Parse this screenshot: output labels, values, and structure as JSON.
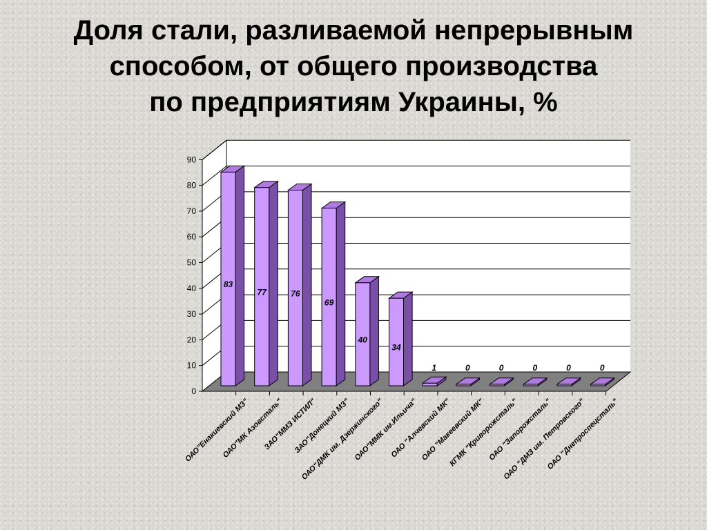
{
  "chart_data": {
    "type": "bar",
    "title_lines": [
      "Доля стали, разливаемой непрерывным",
      "способом, от общего производства",
      "по предприятиям Украины, %"
    ],
    "categories": [
      "ОАО\"Енакиевский МЗ\"",
      "ОАО\"МК Азовсталь\"",
      "ЗАО\"ММЗ ИСТИЛ\"",
      "ЗАО\"Донецкий МЗ\"",
      "ОАО\"ДМК им. Дзержинского\"",
      "ОАО\"ММК им.Ильича\"",
      "ОАО \"Алчевский МК\"",
      "ОАО \"Макеевский МК\"",
      "КГМК \"Криворожсталь\"",
      "ОАО \"Запорожсталь\"",
      "ОАО \"ДМЗ им. Петровского\"",
      "ОАО \"Днепроспецсталь\""
    ],
    "values": [
      83,
      77,
      76,
      69,
      40,
      34,
      1,
      0,
      0,
      0,
      0,
      0
    ],
    "ylim": [
      0,
      90
    ],
    "yticks": [
      0,
      10,
      20,
      30,
      40,
      50,
      60,
      70,
      80,
      90
    ],
    "grid": true,
    "colors": {
      "bar_front": "#cc99ff",
      "bar_side": "#7a4fa8",
      "bar_top": "#b07ae0",
      "floor": "#808080",
      "wall": "#ffffff"
    }
  }
}
